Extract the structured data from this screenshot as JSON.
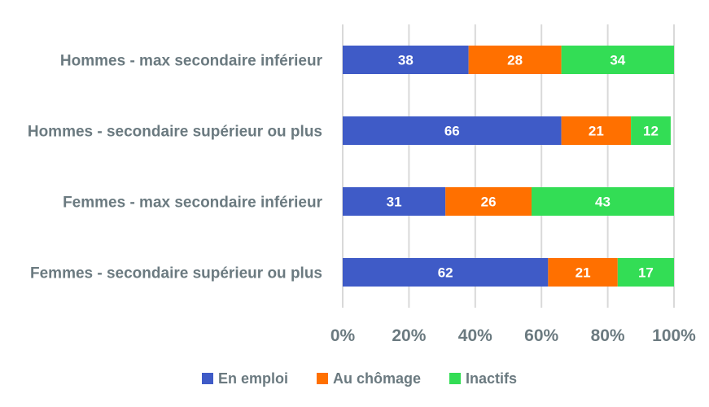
{
  "chart_data": {
    "type": "bar",
    "orientation": "horizontal",
    "stacked": true,
    "percent": true,
    "title": "",
    "xlabel": "",
    "ylabel": "",
    "xlim": [
      0,
      100
    ],
    "x_ticks": [
      "0%",
      "20%",
      "40%",
      "60%",
      "80%",
      "100%"
    ],
    "grid": "vertical",
    "legend": "bottom",
    "categories": [
      "Hommes - max secondaire inférieur",
      "Hommes - secondaire supérieur ou plus",
      "Femmes - max secondaire inférieur",
      "Femmes - secondaire supérieur ou plus"
    ],
    "series": [
      {
        "name": "En emploi",
        "color": "#3f5bc7",
        "values": [
          38,
          66,
          31,
          62
        ]
      },
      {
        "name": "Au chômage",
        "color": "#ff7000",
        "values": [
          28,
          21,
          26,
          21
        ]
      },
      {
        "name": "Inactifs",
        "color": "#33dd55",
        "values": [
          34,
          12,
          43,
          17
        ]
      }
    ]
  }
}
